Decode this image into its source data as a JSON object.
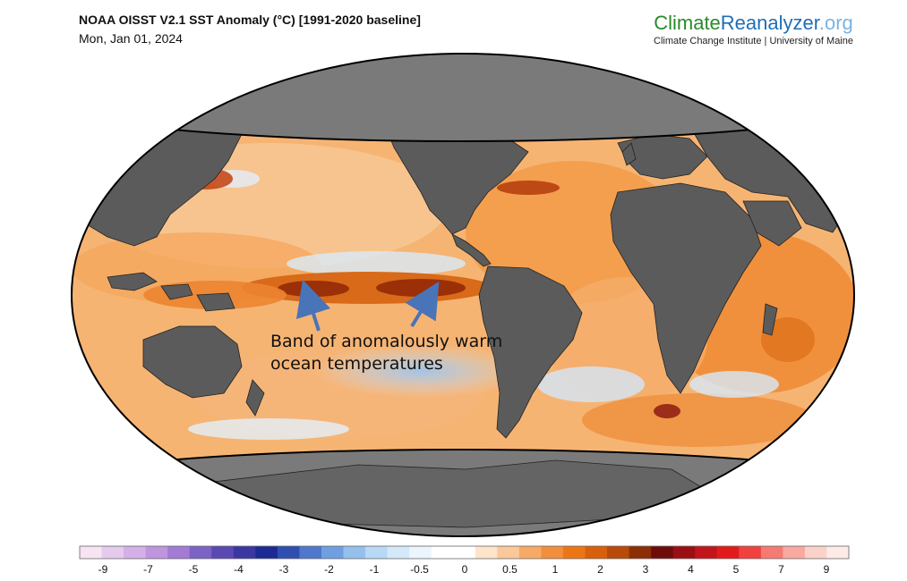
{
  "header": {
    "title": "NOAA OISST V2.1 SST Anomaly (°C) [1991-2020 baseline]",
    "date": "Mon, Jan 01, 2024"
  },
  "brand": {
    "part1": "Climate",
    "part2": "Reanalyzer",
    "part3": ".org",
    "subtitle": "Climate Change Institute | University of Maine"
  },
  "annotation": {
    "line1": "Band of anomalously warm",
    "line2": "ocean temperatures"
  },
  "colorbar": {
    "labels": [
      "-9",
      "-7",
      "-5",
      "-4",
      "-3",
      "-2",
      "-1",
      "-0.5",
      "0",
      "0.5",
      "1",
      "2",
      "3",
      "4",
      "5",
      "7",
      "9"
    ],
    "colors": [
      "#f6e4f2",
      "#e6caee",
      "#d3b1e6",
      "#bf95df",
      "#a37ad4",
      "#7a63c4",
      "#5a49b2",
      "#3a37a2",
      "#1c2a94",
      "#2f4fb0",
      "#4f78cc",
      "#6f9fe0",
      "#95c0ee",
      "#b8d8f6",
      "#d5e8fa",
      "#ecf4fc",
      "#ffffff",
      "#ffffff",
      "#fde4cb",
      "#fbc89a",
      "#f7aa66",
      "#f28e3c",
      "#ec7616",
      "#d85f0c",
      "#b84a0a",
      "#8c2e06",
      "#6e0c0c",
      "#9a0f14",
      "#c2141c",
      "#e31a1c",
      "#f0413e",
      "#f47a72",
      "#f9a99f",
      "#fbd2ca",
      "#fdebe8"
    ]
  },
  "colors": {
    "land": "#5a5a5a",
    "polar_mask": "#7a7a7a",
    "warm": "#f39a3d",
    "strong_warm": "#b5420c",
    "cool": "#bcd9f3",
    "arrow": "#4a74b8"
  }
}
